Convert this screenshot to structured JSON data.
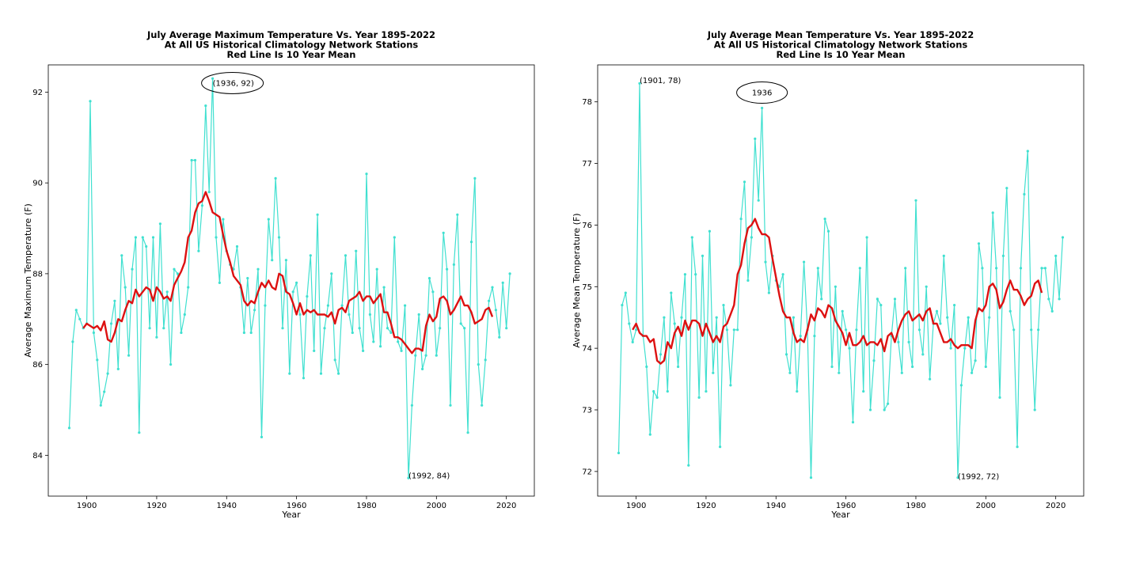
{
  "chart_data": [
    {
      "type": "line",
      "title_lines": [
        "July Average Maximum Temperature Vs. Year 1895-2022",
        "At All US Historical Climatology Network Stations",
        "Red Line Is 10 Year Mean"
      ],
      "xlabel": "Year",
      "ylabel": "Average Maximum Temperature (F)",
      "xlim": [
        1889,
        2028
      ],
      "ylim": [
        83.1,
        92.6
      ],
      "xticks": [
        1900,
        1920,
        1940,
        1960,
        1980,
        2000,
        2020
      ],
      "yticks": [
        84,
        86,
        88,
        90,
        92
      ],
      "grid": false,
      "legend": "none",
      "colors": {
        "annual": "#40e0d0",
        "mean": "#dd1111"
      },
      "series": [
        {
          "role": "annual",
          "x_start": 1895,
          "values": [
            84.6,
            86.5,
            87.2,
            87.0,
            86.8,
            86.9,
            91.8,
            86.7,
            86.1,
            85.1,
            85.4,
            85.8,
            86.9,
            87.4,
            85.9,
            88.4,
            87.7,
            86.2,
            88.1,
            88.8,
            84.5,
            88.8,
            88.6,
            86.8,
            88.8,
            86.6,
            89.1,
            86.8,
            87.6,
            86.0,
            88.1,
            88.0,
            86.7,
            87.1,
            87.7,
            90.5,
            90.5,
            88.5,
            89.5,
            91.7,
            89.8,
            92.3,
            88.8,
            87.8,
            89.2,
            88.5,
            88.2,
            88.1,
            88.6,
            87.7,
            86.7,
            87.9,
            86.7,
            87.2,
            88.1,
            84.4,
            87.3,
            89.2,
            88.3,
            90.1,
            88.8,
            86.8,
            88.3,
            85.8,
            87.6,
            87.8,
            87.1,
            85.7,
            87.5,
            88.4,
            86.3,
            89.3,
            85.8,
            86.8,
            87.3,
            88.0,
            86.1,
            85.8,
            87.3,
            88.4,
            87.1,
            86.7,
            88.5,
            86.8,
            86.3,
            90.2,
            87.1,
            86.5,
            88.1,
            86.4,
            87.7,
            86.8,
            86.7,
            88.8,
            86.5,
            86.3,
            87.3,
            83.5,
            85.1,
            86.2,
            87.1,
            85.9,
            86.2,
            87.9,
            87.6,
            86.2,
            86.8,
            88.9,
            88.1,
            85.1,
            88.2,
            89.3,
            86.9,
            86.8,
            84.5,
            88.7,
            90.1,
            86.0,
            85.1,
            86.1,
            87.4,
            87.7,
            87.2,
            86.6,
            87.8,
            86.8,
            88.0
          ]
        },
        {
          "role": "10-year mean",
          "x_start": 1899,
          "values": [
            86.8,
            86.9,
            86.85,
            86.8,
            86.85,
            86.75,
            86.95,
            86.55,
            86.5,
            86.7,
            87.0,
            86.95,
            87.2,
            87.4,
            87.35,
            87.65,
            87.5,
            87.6,
            87.7,
            87.65,
            87.4,
            87.7,
            87.6,
            87.45,
            87.5,
            87.4,
            87.75,
            87.9,
            88.05,
            88.25,
            88.8,
            88.95,
            89.35,
            89.55,
            89.6,
            89.8,
            89.6,
            89.35,
            89.3,
            89.25,
            88.85,
            88.5,
            88.25,
            87.95,
            87.85,
            87.75,
            87.4,
            87.3,
            87.4,
            87.35,
            87.6,
            87.8,
            87.7,
            87.85,
            87.7,
            87.65,
            88.0,
            87.95,
            87.6,
            87.55,
            87.35,
            87.1,
            87.35,
            87.1,
            87.2,
            87.15,
            87.2,
            87.1,
            87.1,
            87.1,
            87.05,
            87.15,
            86.9,
            87.2,
            87.25,
            87.15,
            87.4,
            87.45,
            87.5,
            87.6,
            87.4,
            87.5,
            87.5,
            87.35,
            87.45,
            87.55,
            87.15,
            87.15,
            86.9,
            86.6,
            86.6,
            86.55,
            86.45,
            86.35,
            86.25,
            86.35,
            86.35,
            86.3,
            86.85,
            87.1,
            86.95,
            87.05,
            87.45,
            87.5,
            87.4,
            87.1,
            87.2,
            87.35,
            87.5,
            87.3,
            87.3,
            87.15,
            86.9,
            86.95,
            87.0,
            87.2,
            87.25,
            87.05
          ]
        }
      ],
      "annotations": [
        {
          "text": "(1936, 92)",
          "x": 1936,
          "y": 92.2,
          "circled": true
        },
        {
          "text": "(1992, 84)",
          "x": 1992,
          "y": 83.55,
          "circled": false
        }
      ]
    },
    {
      "type": "line",
      "title_lines": [
        "July Average Mean Temperature Vs. Year 1895-2022",
        "At All US Historical Climatology Network Stations",
        "Red Line Is 10 Year Mean"
      ],
      "xlabel": "Year",
      "ylabel": "Average Mean Temperature (F)",
      "xlim": [
        1889,
        2028
      ],
      "ylim": [
        71.6,
        78.6
      ],
      "xticks": [
        1900,
        1920,
        1940,
        1960,
        1980,
        2000,
        2020
      ],
      "yticks": [
        72,
        73,
        74,
        75,
        76,
        77,
        78
      ],
      "grid": false,
      "legend": "none",
      "colors": {
        "annual": "#40e0d0",
        "mean": "#dd1111"
      },
      "series": [
        {
          "role": "annual",
          "x_start": 1895,
          "values": [
            72.3,
            74.7,
            74.9,
            74.4,
            74.1,
            74.3,
            78.3,
            74.2,
            73.7,
            72.6,
            73.3,
            73.2,
            73.9,
            74.5,
            73.3,
            74.9,
            74.4,
            73.7,
            74.5,
            75.2,
            72.1,
            75.8,
            75.2,
            73.2,
            75.5,
            73.3,
            75.9,
            73.6,
            74.5,
            72.4,
            74.7,
            74.3,
            73.4,
            74.3,
            74.3,
            76.1,
            76.7,
            75.1,
            75.8,
            77.4,
            76.4,
            77.9,
            75.4,
            74.9,
            75.5,
            75.1,
            75.0,
            75.2,
            73.9,
            73.6,
            74.5,
            73.3,
            74.2,
            75.4,
            74.3,
            71.9,
            74.2,
            75.3,
            74.8,
            76.1,
            75.9,
            73.7,
            75.0,
            73.6,
            74.6,
            74.3,
            74.0,
            72.8,
            74.3,
            75.3,
            73.3,
            75.8,
            73.0,
            73.8,
            74.8,
            74.7,
            73.0,
            73.1,
            74.2,
            74.8,
            74.1,
            73.6,
            75.3,
            74.1,
            73.7,
            76.4,
            74.3,
            73.9,
            75.0,
            73.5,
            74.4,
            74.6,
            74.4,
            75.5,
            74.5,
            74.0,
            74.7,
            71.9,
            73.4,
            74.0,
            74.5,
            73.6,
            73.8,
            75.7,
            75.3,
            73.7,
            74.5,
            76.2,
            75.3,
            73.2,
            75.5,
            76.6,
            74.6,
            74.3,
            72.4,
            75.3,
            76.5,
            77.2,
            74.3,
            73.0,
            74.3,
            75.3,
            75.3,
            74.8,
            74.6,
            75.5,
            74.8,
            75.8
          ]
        },
        {
          "role": "10-year mean",
          "x_start": 1899,
          "values": [
            74.3,
            74.4,
            74.25,
            74.2,
            74.2,
            74.1,
            74.15,
            73.8,
            73.75,
            73.8,
            74.1,
            74.0,
            74.25,
            74.35,
            74.2,
            74.45,
            74.3,
            74.45,
            74.45,
            74.4,
            74.2,
            74.4,
            74.25,
            74.1,
            74.2,
            74.1,
            74.35,
            74.4,
            74.55,
            74.7,
            75.2,
            75.35,
            75.7,
            75.95,
            76.0,
            76.1,
            75.95,
            75.85,
            75.85,
            75.8,
            75.45,
            75.15,
            74.85,
            74.6,
            74.5,
            74.5,
            74.25,
            74.1,
            74.15,
            74.1,
            74.3,
            74.55,
            74.45,
            74.65,
            74.6,
            74.5,
            74.7,
            74.65,
            74.45,
            74.35,
            74.25,
            74.05,
            74.25,
            74.05,
            74.05,
            74.1,
            74.2,
            74.05,
            74.1,
            74.1,
            74.05,
            74.15,
            73.95,
            74.2,
            74.25,
            74.1,
            74.3,
            74.45,
            74.55,
            74.6,
            74.45,
            74.5,
            74.55,
            74.45,
            74.6,
            74.65,
            74.4,
            74.4,
            74.25,
            74.1,
            74.1,
            74.15,
            74.05,
            74.0,
            74.05,
            74.05,
            74.05,
            74.0,
            74.45,
            74.65,
            74.6,
            74.7,
            75.0,
            75.05,
            74.95,
            74.65,
            74.75,
            74.95,
            75.1,
            74.95,
            74.95,
            74.85,
            74.7,
            74.8,
            74.85,
            75.05,
            75.1,
            74.9
          ]
        }
      ],
      "annotations": [
        {
          "text": "(1901, 78)",
          "x": 1901,
          "y": 78.35,
          "circled": false
        },
        {
          "text": "1936",
          "x": 1936,
          "y": 78.15,
          "circled": true
        },
        {
          "text": "(1992, 72)",
          "x": 1992,
          "y": 71.92,
          "circled": false
        }
      ]
    }
  ]
}
